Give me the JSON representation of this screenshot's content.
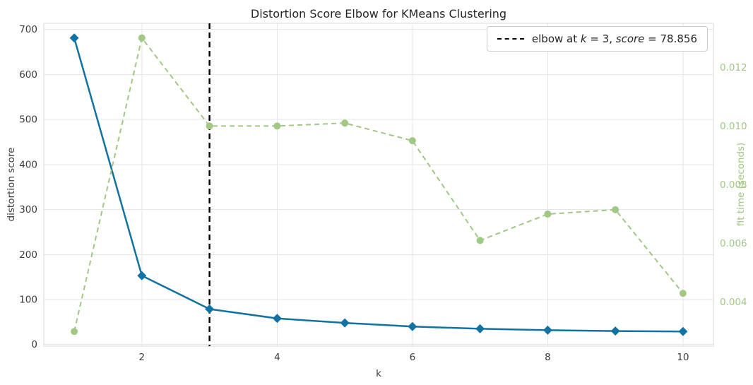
{
  "chart_data": {
    "type": "line",
    "title": "Distortion Score Elbow for KMeans Clustering",
    "xlabel": "k",
    "ylabel_left": "distortion score",
    "ylabel_right": "fit time (seconds)",
    "x": [
      1,
      2,
      3,
      4,
      5,
      6,
      7,
      8,
      9,
      10
    ],
    "series": [
      {
        "name": "distortion score",
        "axis": "left",
        "values": [
          681,
          153,
          78.856,
          58,
          48,
          40,
          35,
          32,
          30,
          29
        ],
        "color": "#1272a2",
        "style": "solid",
        "marker": "diamond"
      },
      {
        "name": "fit time",
        "axis": "right",
        "values": [
          0.003,
          0.013,
          0.01,
          0.01,
          0.0101,
          0.0095,
          0.0061,
          0.007,
          0.00715,
          0.0043
        ],
        "color": "#a1c884",
        "style": "dashed",
        "marker": "circle"
      }
    ],
    "elbow": {
      "k": 3,
      "score": 78.856
    },
    "legend": {
      "position": "upper right",
      "parts": [
        {
          "text": "elbow at ",
          "italic": false
        },
        {
          "text": "k",
          "italic": true
        },
        {
          "text": " = 3, ",
          "italic": false
        },
        {
          "text": "score",
          "italic": true
        },
        {
          "text": " = 78.856",
          "italic": false
        }
      ]
    },
    "axes": {
      "xlim": [
        0.55,
        10.45
      ],
      "xticks": [
        2,
        4,
        6,
        8,
        10
      ],
      "xtick_labels": [
        "2",
        "4",
        "6",
        "8",
        "10"
      ],
      "ylim_left": [
        -3.6,
        713.6
      ],
      "yticks_left": [
        0,
        100,
        200,
        300,
        400,
        500,
        600,
        700
      ],
      "ytick_labels_left": [
        "0",
        "100",
        "200",
        "300",
        "400",
        "500",
        "600",
        "700"
      ],
      "ylim_right": [
        0.0025,
        0.0135
      ],
      "yticks_right": [
        0.004,
        0.006,
        0.008,
        0.01,
        0.012
      ],
      "ytick_labels_right": [
        "0.004",
        "0.006",
        "0.008",
        "0.010",
        "0.012"
      ],
      "grid": true
    },
    "colors": {
      "grid": "#e6e6e6",
      "spine": "#d9d9d9",
      "elbow_line": "#000000",
      "tick_label": "#3b3b3b",
      "right_tick_label": "#a1c884",
      "title": "#262626"
    }
  }
}
